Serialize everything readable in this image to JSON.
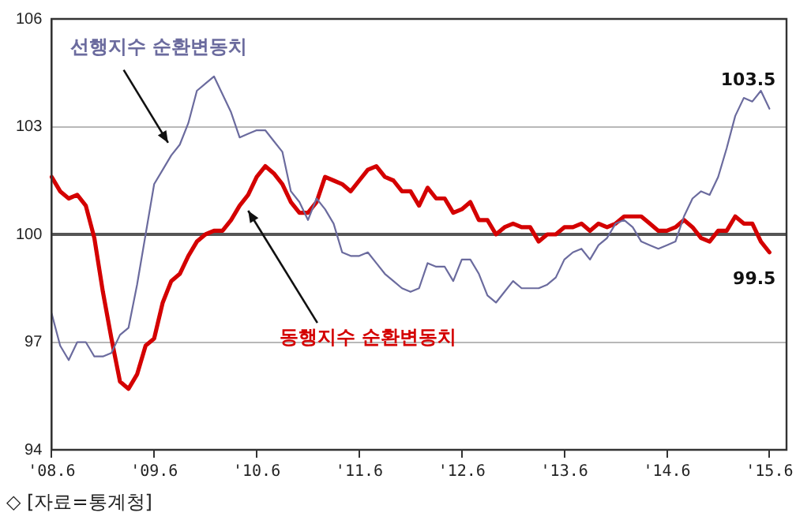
{
  "chart_data": {
    "type": "line",
    "categories": [
      "'08.6",
      null,
      null,
      null,
      null,
      null,
      null,
      null,
      null,
      null,
      null,
      null,
      "'09.6",
      null,
      null,
      null,
      null,
      null,
      null,
      null,
      null,
      null,
      null,
      null,
      "'10.6",
      null,
      null,
      null,
      null,
      null,
      null,
      null,
      null,
      null,
      null,
      null,
      "'11.6",
      null,
      null,
      null,
      null,
      null,
      null,
      null,
      null,
      null,
      null,
      null,
      "'12.6",
      null,
      null,
      null,
      null,
      null,
      null,
      null,
      null,
      null,
      null,
      null,
      "'13.6",
      null,
      null,
      null,
      null,
      null,
      null,
      null,
      null,
      null,
      null,
      null,
      "'14.6",
      null,
      null,
      null,
      null,
      null,
      null,
      null,
      null,
      null,
      null,
      null,
      "'15.6",
      null,
      null
    ],
    "series": [
      {
        "name": "선행지수 순환변동치",
        "color": "#6b6b9e",
        "values": [
          97.8,
          96.9,
          96.5,
          97.0,
          97.0,
          96.6,
          96.6,
          96.7,
          97.2,
          97.4,
          98.6,
          100.0,
          101.4,
          101.8,
          102.2,
          102.5,
          103.1,
          104.0,
          104.2,
          104.4,
          103.9,
          103.4,
          102.7,
          102.8,
          102.9,
          102.9,
          102.6,
          102.3,
          101.2,
          100.9,
          100.4,
          101.0,
          100.7,
          100.3,
          99.5,
          99.4,
          99.4,
          99.5,
          99.2,
          98.9,
          98.7,
          98.5,
          98.4,
          98.5,
          99.2,
          99.1,
          99.1,
          98.7,
          99.3,
          99.3,
          98.9,
          98.3,
          98.1,
          98.4,
          98.7,
          98.5,
          98.5,
          98.5,
          98.6,
          98.8,
          99.3,
          99.5,
          99.6,
          99.3,
          99.7,
          99.9,
          100.3,
          100.4,
          100.2,
          99.8,
          99.7,
          99.6,
          99.7,
          99.8,
          100.5,
          101.0,
          101.2,
          101.1,
          101.6,
          102.4,
          103.3,
          103.8,
          103.7,
          104.0,
          103.5,
          null,
          null
        ],
        "value_labels": [
          null,
          null,
          null,
          null,
          null,
          null,
          null,
          null,
          null,
          null,
          null,
          null,
          null,
          null,
          null,
          null,
          null,
          null,
          null,
          null,
          null,
          null,
          null,
          null,
          null,
          null,
          null,
          null,
          null,
          null,
          null,
          null,
          null,
          null,
          null,
          null,
          null,
          null,
          null,
          null,
          null,
          null,
          null,
          null,
          null,
          null,
          null,
          null,
          null,
          null,
          null,
          null,
          null,
          null,
          null,
          null,
          null,
          null,
          null,
          null,
          null,
          null,
          null,
          null,
          null,
          null,
          null,
          null,
          null,
          null,
          null,
          null,
          null,
          null,
          null,
          null,
          null,
          null,
          null,
          null,
          null,
          null,
          null,
          null,
          "103.5",
          null,
          null
        ]
      },
      {
        "name": "동행지수 순환변동치",
        "color": "#d40000",
        "values": [
          101.6,
          101.2,
          101.0,
          101.1,
          100.8,
          99.9,
          98.4,
          97.1,
          95.9,
          95.7,
          96.1,
          96.9,
          97.1,
          98.1,
          98.7,
          98.9,
          99.4,
          99.8,
          100.0,
          100.1,
          100.1,
          100.4,
          100.8,
          101.1,
          101.6,
          101.9,
          101.7,
          101.4,
          100.9,
          100.6,
          100.6,
          100.9,
          101.6,
          101.5,
          101.4,
          101.2,
          101.5,
          101.8,
          101.9,
          101.6,
          101.5,
          101.2,
          101.2,
          100.8,
          101.3,
          101.0,
          101.0,
          100.6,
          100.7,
          100.9,
          100.4,
          100.4,
          100.0,
          100.2,
          100.3,
          100.2,
          100.2,
          99.8,
          100.0,
          100.0,
          100.2,
          100.2,
          100.3,
          100.1,
          100.3,
          100.2,
          100.3,
          100.5,
          100.5,
          100.5,
          100.3,
          100.1,
          100.1,
          100.2,
          100.4,
          100.2,
          99.9,
          99.8,
          100.1,
          100.1,
          100.5,
          100.3,
          100.3,
          99.8,
          99.5,
          null,
          null
        ],
        "value_labels": [
          null,
          null,
          null,
          null,
          null,
          null,
          null,
          null,
          null,
          null,
          null,
          null,
          null,
          null,
          null,
          null,
          null,
          null,
          null,
          null,
          null,
          null,
          null,
          null,
          null,
          null,
          null,
          null,
          null,
          null,
          null,
          null,
          null,
          null,
          null,
          null,
          null,
          null,
          null,
          null,
          null,
          null,
          null,
          null,
          null,
          null,
          null,
          null,
          null,
          null,
          null,
          null,
          null,
          null,
          null,
          null,
          null,
          null,
          null,
          null,
          null,
          null,
          null,
          null,
          null,
          null,
          null,
          null,
          null,
          null,
          null,
          null,
          null,
          null,
          null,
          null,
          null,
          null,
          null,
          null,
          null,
          null,
          null,
          null,
          "99.5",
          null,
          null
        ]
      }
    ],
    "ylim": [
      94,
      106
    ],
    "yticks": [
      94,
      97,
      100,
      103,
      106
    ],
    "grid": "y",
    "ref_lines": [
      {
        "axis": "y",
        "value": 100,
        "color": "#555555"
      }
    ],
    "legend": false,
    "marker": "none",
    "annotations": [
      "◇ [자료=통계청]"
    ]
  }
}
